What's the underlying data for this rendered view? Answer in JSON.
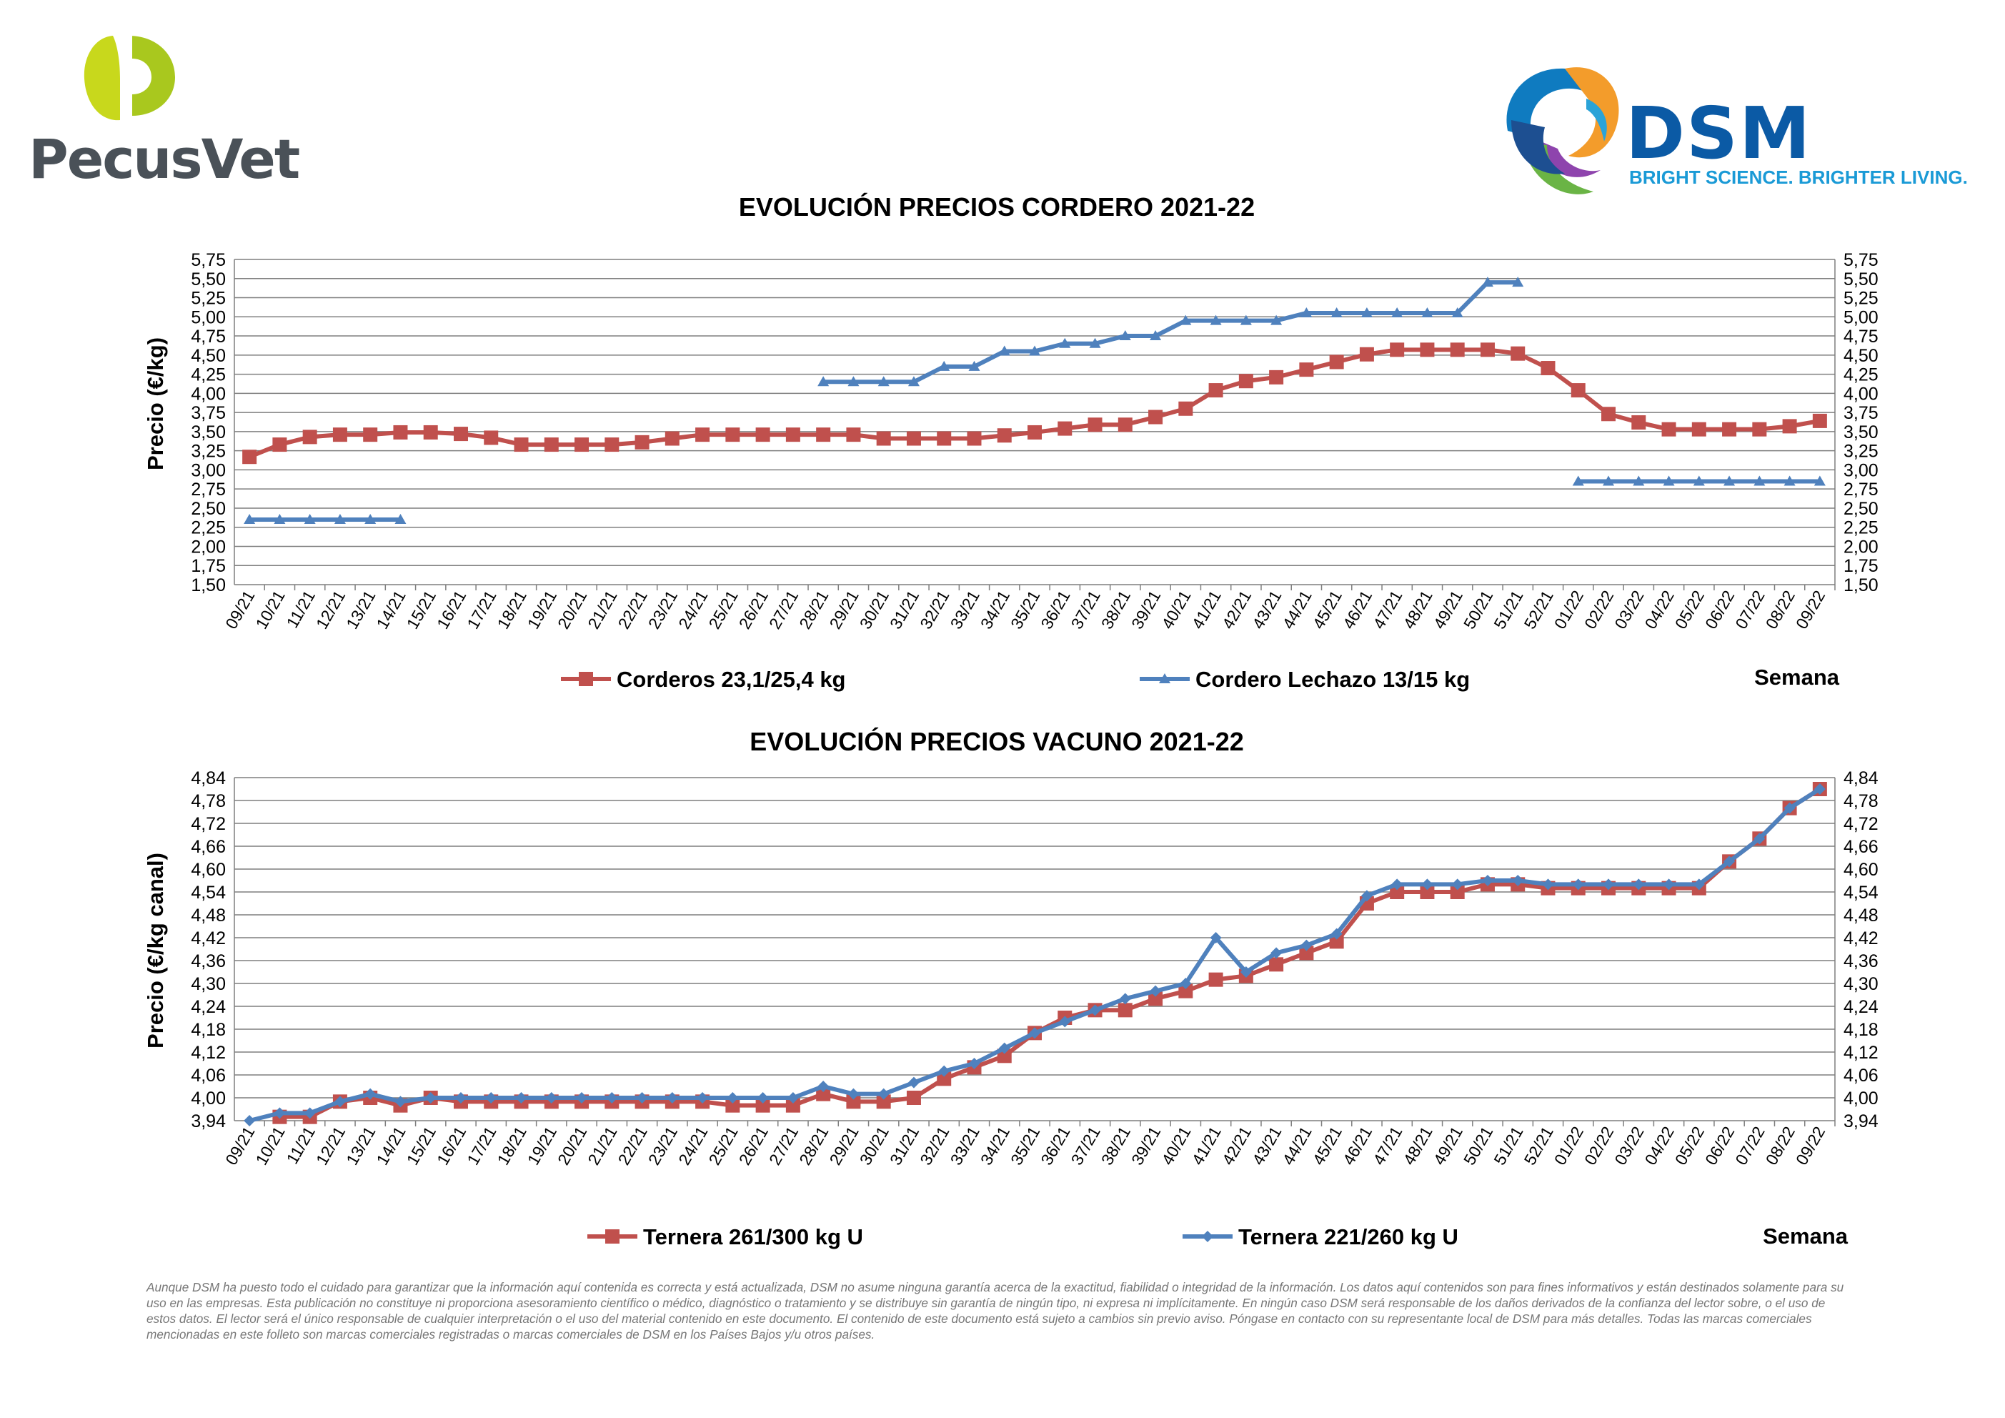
{
  "logos": {
    "pecusvet": {
      "name": "PecusVet",
      "icon": "pecusvet-p-logo",
      "colors": {
        "leaf": "#a9c81e",
        "text": "#4a5158"
      }
    },
    "dsm": {
      "name": "DSM",
      "tagline": "BRIGHT SCIENCE. BRIGHTER LIVING.",
      "icon": "dsm-swirl-logo",
      "colors": {
        "name": "#0b5aa5",
        "tagline": "#1a9ad6"
      }
    }
  },
  "chart_data": [
    {
      "type": "line",
      "title": "EVOLUCIÓN PRECIOS CORDERO 2021-22",
      "ylabel": "Precio (€/kg)",
      "xlabel": "Semana",
      "ylim": [
        1.5,
        5.75
      ],
      "yticks": [
        "5,75",
        "5,50",
        "5,25",
        "5,00",
        "4,75",
        "4,50",
        "4,25",
        "4,00",
        "3,75",
        "3,50",
        "3,25",
        "3,00",
        "2,75",
        "2,50",
        "2,25",
        "2,00",
        "1,75",
        "1,50"
      ],
      "grid": true,
      "legend": "bottom",
      "categories": [
        "09/21",
        "10/21",
        "11/21",
        "12/21",
        "13/21",
        "14/21",
        "15/21",
        "16/21",
        "17/21",
        "18/21",
        "19/21",
        "20/21",
        "21/21",
        "22/21",
        "23/21",
        "24/21",
        "25/21",
        "26/21",
        "27/21",
        "28/21",
        "29/21",
        "30/21",
        "31/21",
        "32/21",
        "33/21",
        "34/21",
        "35/21",
        "36/21",
        "37/21",
        "38/21",
        "39/21",
        "40/21",
        "41/21",
        "42/21",
        "43/21",
        "44/21",
        "45/21",
        "46/21",
        "47/21",
        "48/21",
        "49/21",
        "50/21",
        "51/21",
        "52/21",
        "01/22",
        "02/22",
        "03/22",
        "04/22",
        "05/22",
        "06/22",
        "07/22",
        "08/22",
        "09/22"
      ],
      "series": [
        {
          "name": "Corderos 23,1/25,4 kg",
          "color": "#c0504d",
          "marker": "square",
          "values": [
            3.17,
            3.33,
            3.43,
            3.46,
            3.46,
            3.49,
            3.49,
            3.47,
            3.42,
            3.33,
            3.33,
            3.33,
            3.33,
            3.36,
            3.41,
            3.46,
            3.46,
            3.46,
            3.46,
            3.46,
            3.46,
            3.41,
            3.41,
            3.41,
            3.41,
            3.45,
            3.49,
            3.54,
            3.59,
            3.59,
            3.69,
            3.8,
            4.04,
            4.16,
            4.21,
            4.31,
            4.41,
            4.51,
            4.57,
            4.57,
            4.57,
            4.57,
            4.52,
            4.33,
            4.04,
            3.73,
            3.62,
            3.53,
            3.53,
            3.53,
            3.53,
            3.57,
            3.64
          ]
        },
        {
          "name": "Cordero Lechazo 13/15 kg",
          "color": "#4f81bd",
          "marker": "triangle",
          "values": [
            2.35,
            2.35,
            2.35,
            2.35,
            2.35,
            2.35,
            null,
            null,
            null,
            null,
            null,
            null,
            null,
            null,
            null,
            null,
            null,
            null,
            null,
            4.15,
            4.15,
            4.15,
            4.15,
            4.35,
            4.35,
            4.55,
            4.55,
            4.65,
            4.65,
            4.75,
            4.75,
            4.95,
            4.95,
            4.95,
            4.95,
            5.05,
            5.05,
            5.05,
            5.05,
            5.05,
            5.05,
            5.45,
            5.45,
            null,
            2.85,
            2.85,
            2.85,
            2.85,
            2.85,
            2.85,
            2.85,
            2.85,
            2.85
          ]
        }
      ]
    },
    {
      "type": "line",
      "title": "EVOLUCIÓN PRECIOS VACUNO 2021-22",
      "ylabel": "Precio (€/kg canal)",
      "xlabel": "Semana",
      "ylim": [
        3.94,
        4.84
      ],
      "yticks": [
        "4,84",
        "4,78",
        "4,72",
        "4,66",
        "4,60",
        "4,54",
        "4,48",
        "4,42",
        "4,36",
        "4,30",
        "4,24",
        "4,18",
        "4,12",
        "4,06",
        "4,00",
        "3,94"
      ],
      "grid": true,
      "legend": "bottom",
      "categories": [
        "09/21",
        "10/21",
        "11/21",
        "12/21",
        "13/21",
        "14/21",
        "15/21",
        "16/21",
        "17/21",
        "18/21",
        "19/21",
        "20/21",
        "21/21",
        "22/21",
        "23/21",
        "24/21",
        "25/21",
        "26/21",
        "27/21",
        "28/21",
        "29/21",
        "30/21",
        "31/21",
        "32/21",
        "33/21",
        "34/21",
        "35/21",
        "36/21",
        "37/21",
        "38/21",
        "39/21",
        "40/21",
        "41/21",
        "42/21",
        "43/21",
        "44/21",
        "45/21",
        "46/21",
        "47/21",
        "48/21",
        "49/21",
        "50/21",
        "51/21",
        "52/21",
        "01/22",
        "02/22",
        "03/22",
        "04/22",
        "05/22",
        "06/22",
        "07/22",
        "08/22",
        "09/22"
      ],
      "series": [
        {
          "name": "Ternera 261/300 kg U",
          "color": "#c0504d",
          "marker": "square",
          "values": [
            null,
            3.95,
            3.95,
            3.99,
            4.0,
            3.98,
            4.0,
            3.99,
            3.99,
            3.99,
            3.99,
            3.99,
            3.99,
            3.99,
            3.99,
            3.99,
            3.98,
            3.98,
            3.98,
            4.01,
            3.99,
            3.99,
            4.0,
            4.05,
            4.08,
            4.11,
            4.17,
            4.21,
            4.23,
            4.23,
            4.26,
            4.28,
            4.31,
            4.32,
            4.35,
            4.38,
            4.41,
            4.51,
            4.54,
            4.54,
            4.54,
            4.56,
            4.56,
            4.55,
            4.55,
            4.55,
            4.55,
            4.55,
            4.55,
            4.62,
            4.68,
            4.76,
            4.81
          ]
        },
        {
          "name": "Ternera 221/260 kg U",
          "color": "#4f81bd",
          "marker": "diamond",
          "values": [
            3.94,
            3.96,
            3.96,
            3.99,
            4.01,
            3.99,
            4.0,
            4.0,
            4.0,
            4.0,
            4.0,
            4.0,
            4.0,
            4.0,
            4.0,
            4.0,
            4.0,
            4.0,
            4.0,
            4.03,
            4.01,
            4.01,
            4.04,
            4.07,
            4.09,
            4.13,
            4.17,
            4.2,
            4.23,
            4.26,
            4.28,
            4.3,
            4.42,
            4.33,
            4.38,
            4.4,
            4.43,
            4.53,
            4.56,
            4.56,
            4.56,
            4.57,
            4.57,
            4.56,
            4.56,
            4.56,
            4.56,
            4.56,
            4.56,
            4.62,
            4.68,
            4.76,
            4.81
          ]
        }
      ]
    }
  ],
  "disclaimer": "Aunque DSM ha puesto todo el cuidado para garantizar que la información aquí contenida es correcta y está actualizada, DSM no asume ninguna garantía acerca de la exactitud, fiabilidad o integridad de la información. Los datos aquí contenidos son para fines informativos y están destinados solamente para su uso en las empresas. Esta publicación no constituye ni proporciona asesoramiento científico o médico, diagnóstico o tratamiento y se distribuye sin garantía de ningún tipo, ni expresa ni implícitamente. En ningún caso DSM será responsable de los daños derivados de la confianza del lector sobre, o el uso de estos datos. El lector será el único responsable de cualquier interpretación o el uso del material contenido en este documento. El contenido de este documento está sujeto a cambios sin previo aviso. Póngase en contacto con su representante local de DSM para más detalles. Todas las marcas comerciales mencionadas en este folleto son marcas comerciales registradas o marcas comerciales de DSM en los Países Bajos y/u otros países."
}
